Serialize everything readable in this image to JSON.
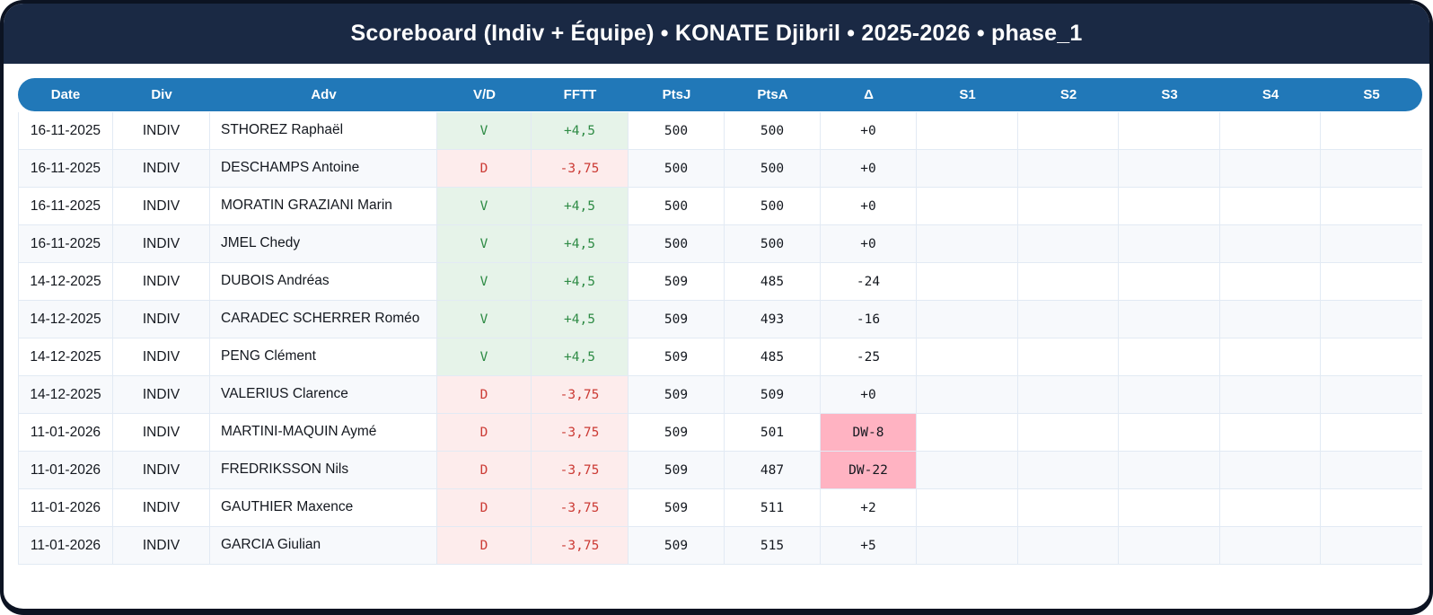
{
  "title": "Scoreboard (Indiv + Équipe) • KONATE Djibril • 2025-2026 • phase_1",
  "colors": {
    "title_bar": "#1a2944",
    "card_border": "#0c1322",
    "header_blue": "#2178b8",
    "win_text": "#2e8b45",
    "win_bg": "#e6f3e9",
    "loss_text": "#cc3b35",
    "loss_bg": "#fdecec",
    "delta_warning_bg": "#ffb3c2",
    "alt_row_bg": "#f7f9fc"
  },
  "table": {
    "columns": [
      "Date",
      "Div",
      "Adv",
      "V/D",
      "FFTT",
      "PtsJ",
      "PtsA",
      "Δ",
      "S1",
      "S2",
      "S3",
      "S4",
      "S5"
    ],
    "rows": [
      {
        "date": "16-11-2025",
        "div": "INDIV",
        "adv": "STHOREZ Raphaël",
        "vd": "V",
        "fftt": "+4,5",
        "ptsj": "500",
        "ptsa": "500",
        "delta": "+0",
        "sets": [
          "",
          "",
          "",
          "",
          ""
        ]
      },
      {
        "date": "16-11-2025",
        "div": "INDIV",
        "adv": "DESCHAMPS Antoine",
        "vd": "D",
        "fftt": "-3,75",
        "ptsj": "500",
        "ptsa": "500",
        "delta": "+0",
        "sets": [
          "",
          "",
          "",
          "",
          ""
        ]
      },
      {
        "date": "16-11-2025",
        "div": "INDIV",
        "adv": "MORATIN GRAZIANI Marin",
        "vd": "V",
        "fftt": "+4,5",
        "ptsj": "500",
        "ptsa": "500",
        "delta": "+0",
        "sets": [
          "",
          "",
          "",
          "",
          ""
        ]
      },
      {
        "date": "16-11-2025",
        "div": "INDIV",
        "adv": "JMEL Chedy",
        "vd": "V",
        "fftt": "+4,5",
        "ptsj": "500",
        "ptsa": "500",
        "delta": "+0",
        "sets": [
          "",
          "",
          "",
          "",
          ""
        ]
      },
      {
        "date": "14-12-2025",
        "div": "INDIV",
        "adv": "DUBOIS Andréas",
        "vd": "V",
        "fftt": "+4,5",
        "ptsj": "509",
        "ptsa": "485",
        "delta": "-24",
        "sets": [
          "",
          "",
          "",
          "",
          ""
        ]
      },
      {
        "date": "14-12-2025",
        "div": "INDIV",
        "adv": "CARADEC SCHERRER Roméo",
        "vd": "V",
        "fftt": "+4,5",
        "ptsj": "509",
        "ptsa": "493",
        "delta": "-16",
        "sets": [
          "",
          "",
          "",
          "",
          ""
        ]
      },
      {
        "date": "14-12-2025",
        "div": "INDIV",
        "adv": "PENG Clément",
        "vd": "V",
        "fftt": "+4,5",
        "ptsj": "509",
        "ptsa": "485",
        "delta": "-25",
        "sets": [
          "",
          "",
          "",
          "",
          ""
        ]
      },
      {
        "date": "14-12-2025",
        "div": "INDIV",
        "adv": "VALERIUS Clarence",
        "vd": "D",
        "fftt": "-3,75",
        "ptsj": "509",
        "ptsa": "509",
        "delta": "+0",
        "sets": [
          "",
          "",
          "",
          "",
          ""
        ]
      },
      {
        "date": "11-01-2026",
        "div": "INDIV",
        "adv": "MARTINI-MAQUIN Aymé",
        "vd": "D",
        "fftt": "-3,75",
        "ptsj": "509",
        "ptsa": "501",
        "delta": "DW-8",
        "sets": [
          "",
          "",
          "",
          "",
          ""
        ]
      },
      {
        "date": "11-01-2026",
        "div": "INDIV",
        "adv": "FREDRIKSSON Nils",
        "vd": "D",
        "fftt": "-3,75",
        "ptsj": "509",
        "ptsa": "487",
        "delta": "DW-22",
        "sets": [
          "",
          "",
          "",
          "",
          ""
        ]
      },
      {
        "date": "11-01-2026",
        "div": "INDIV",
        "adv": "GAUTHIER Maxence",
        "vd": "D",
        "fftt": "-3,75",
        "ptsj": "509",
        "ptsa": "511",
        "delta": "+2",
        "sets": [
          "",
          "",
          "",
          "",
          ""
        ]
      },
      {
        "date": "11-01-2026",
        "div": "INDIV",
        "adv": "GARCIA Giulian",
        "vd": "D",
        "fftt": "-3,75",
        "ptsj": "509",
        "ptsa": "515",
        "delta": "+5",
        "sets": [
          "",
          "",
          "",
          "",
          ""
        ]
      }
    ]
  }
}
